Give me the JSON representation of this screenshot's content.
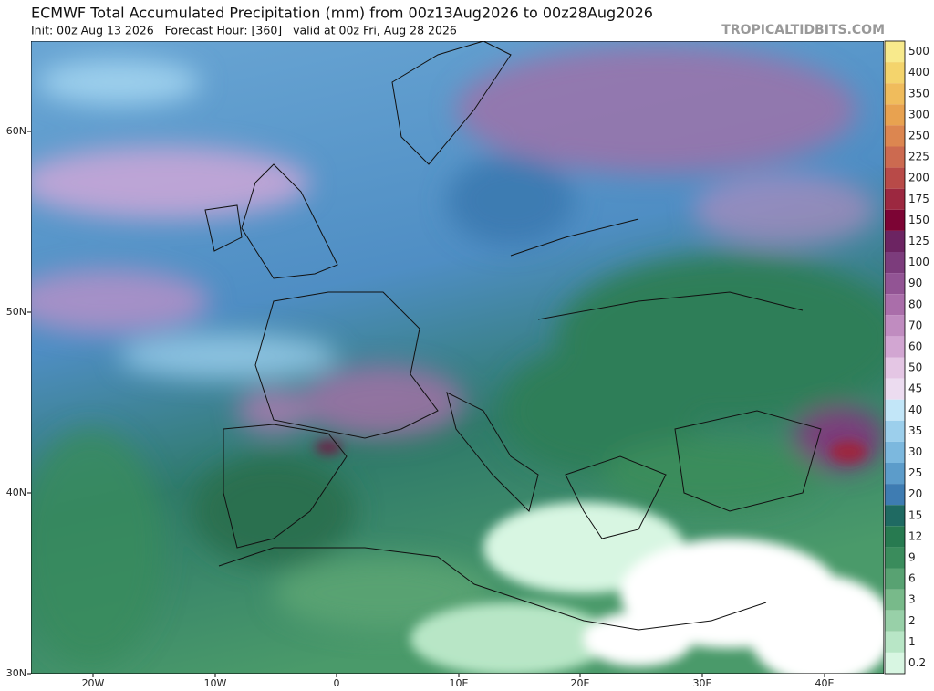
{
  "header": {
    "title": "ECMWF Total Accumulated Precipitation (mm) from 00z13Aug2026 to 00z28Aug2026",
    "subtitle": "Init: 00z Aug 13 2026   Forecast Hour: [360]   valid at 00z Fri, Aug 28 2026",
    "credit": "TROPICALTIDBITS.COM"
  },
  "axes": {
    "lat_labels": [
      "60N",
      "50N",
      "40N",
      "30N"
    ],
    "lon_labels": [
      "20W",
      "10W",
      "0",
      "10E",
      "20E",
      "30E",
      "40E"
    ]
  },
  "colorbar": {
    "levels": [
      500,
      400,
      350,
      300,
      250,
      225,
      200,
      175,
      150,
      125,
      100,
      90,
      80,
      70,
      60,
      50,
      45,
      40,
      35,
      30,
      25,
      20,
      15,
      12,
      9,
      6,
      3,
      2,
      1,
      0.2
    ],
    "colors": [
      "#f8ea8c",
      "#f4d46c",
      "#f0bc5c",
      "#e8a250",
      "#dc8650",
      "#cc6a50",
      "#b84a48",
      "#9c2840",
      "#7c0434",
      "#6c2462",
      "#7c3c7c",
      "#925494",
      "#aa6eaa",
      "#c08cc0",
      "#d2a6d2",
      "#e4c6e4",
      "#ecdcf0",
      "#c2e6f8",
      "#9ccfec",
      "#7cb8de",
      "#5c9cca",
      "#3e7cb2",
      "#1f6a62",
      "#277a50",
      "#3a8c5c",
      "#58a272",
      "#78ba8a",
      "#98d0a8",
      "#b8e6c6",
      "#d8f6e2"
    ]
  }
}
